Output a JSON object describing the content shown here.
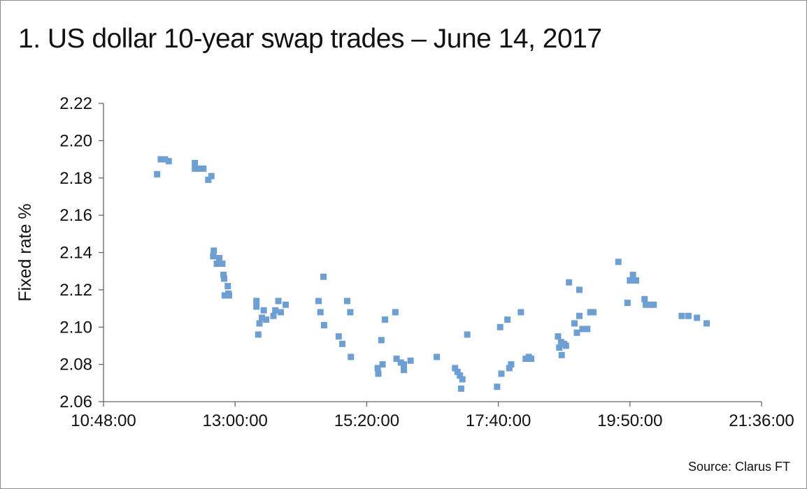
{
  "chart_data": {
    "type": "scatter",
    "title": "1. US dollar 10-year swap trades – June 14, 2017",
    "xlabel": "",
    "ylabel": "Fixed rate %",
    "source": "Source: Clarus FT",
    "xlim_hours": [
      10.8,
      21.6
    ],
    "ylim": [
      2.06,
      2.22
    ],
    "x_tick_labels": [
      "10:48:00",
      "13:00:00",
      "15:20:00",
      "17:40:00",
      "19:50:00",
      "21:36:00"
    ],
    "y_ticks": [
      2.06,
      2.08,
      2.1,
      2.12,
      2.14,
      2.16,
      2.18,
      2.2,
      2.22
    ],
    "y_tick_labels": [
      "2.06",
      "2.08",
      "2.10",
      "2.12",
      "2.14",
      "2.16",
      "2.18",
      "2.20",
      "2.22"
    ],
    "grid": false,
    "marker_color": "#6e9fd2",
    "points_hours_rate": [
      [
        11.68,
        2.182
      ],
      [
        11.74,
        2.19
      ],
      [
        11.81,
        2.19
      ],
      [
        11.87,
        2.189
      ],
      [
        12.3,
        2.188
      ],
      [
        12.3,
        2.185
      ],
      [
        12.37,
        2.185
      ],
      [
        12.44,
        2.185
      ],
      [
        12.52,
        2.179
      ],
      [
        12.57,
        2.181
      ],
      [
        12.61,
        2.141
      ],
      [
        12.6,
        2.138
      ],
      [
        12.66,
        2.134
      ],
      [
        12.7,
        2.137
      ],
      [
        12.75,
        2.134
      ],
      [
        12.77,
        2.128
      ],
      [
        12.78,
        2.126
      ],
      [
        12.79,
        2.117
      ],
      [
        12.84,
        2.122
      ],
      [
        12.85,
        2.118
      ],
      [
        12.86,
        2.117
      ],
      [
        13.31,
        2.114
      ],
      [
        13.31,
        2.111
      ],
      [
        13.34,
        2.096
      ],
      [
        13.36,
        2.102
      ],
      [
        13.4,
        2.105
      ],
      [
        13.43,
        2.109
      ],
      [
        13.47,
        2.104
      ],
      [
        13.59,
        2.106
      ],
      [
        13.62,
        2.109
      ],
      [
        13.67,
        2.114
      ],
      [
        13.71,
        2.108
      ],
      [
        13.79,
        2.112
      ],
      [
        14.33,
        2.114
      ],
      [
        14.36,
        2.108
      ],
      [
        14.41,
        2.127
      ],
      [
        14.42,
        2.101
      ],
      [
        14.66,
        2.095
      ],
      [
        14.72,
        2.091
      ],
      [
        14.8,
        2.114
      ],
      [
        14.85,
        2.108
      ],
      [
        14.86,
        2.084
      ],
      [
        15.3,
        2.078
      ],
      [
        15.31,
        2.075
      ],
      [
        15.36,
        2.093
      ],
      [
        15.38,
        2.08
      ],
      [
        15.42,
        2.104
      ],
      [
        15.59,
        2.108
      ],
      [
        15.61,
        2.083
      ],
      [
        15.68,
        2.081
      ],
      [
        15.73,
        2.08
      ],
      [
        15.73,
        2.077
      ],
      [
        15.84,
        2.082
      ],
      [
        16.27,
        2.084
      ],
      [
        16.57,
        2.078
      ],
      [
        16.61,
        2.076
      ],
      [
        16.65,
        2.074
      ],
      [
        16.69,
        2.072
      ],
      [
        16.67,
        2.067
      ],
      [
        16.77,
        2.096
      ],
      [
        17.26,
        2.068
      ],
      [
        17.31,
        2.1
      ],
      [
        17.33,
        2.075
      ],
      [
        17.43,
        2.104
      ],
      [
        17.46,
        2.078
      ],
      [
        17.49,
        2.08
      ],
      [
        17.65,
        2.108
      ],
      [
        17.73,
        2.083
      ],
      [
        17.78,
        2.084
      ],
      [
        17.82,
        2.083
      ],
      [
        18.26,
        2.095
      ],
      [
        18.28,
        2.089
      ],
      [
        18.31,
        2.092
      ],
      [
        18.32,
        2.085
      ],
      [
        18.36,
        2.091
      ],
      [
        18.39,
        2.09
      ],
      [
        18.44,
        2.124
      ],
      [
        18.53,
        2.102
      ],
      [
        18.57,
        2.097
      ],
      [
        18.61,
        2.106
      ],
      [
        18.61,
        2.12
      ],
      [
        18.66,
        2.099
      ],
      [
        18.74,
        2.099
      ],
      [
        18.79,
        2.108
      ],
      [
        18.84,
        2.108
      ],
      [
        19.25,
        2.135
      ],
      [
        19.4,
        2.113
      ],
      [
        19.44,
        2.125
      ],
      [
        19.49,
        2.128
      ],
      [
        19.54,
        2.125
      ],
      [
        19.68,
        2.115
      ],
      [
        19.7,
        2.112
      ],
      [
        19.76,
        2.112
      ],
      [
        19.83,
        2.112
      ],
      [
        20.29,
        2.106
      ],
      [
        20.4,
        2.106
      ],
      [
        20.54,
        2.105
      ],
      [
        20.7,
        2.102
      ]
    ]
  }
}
